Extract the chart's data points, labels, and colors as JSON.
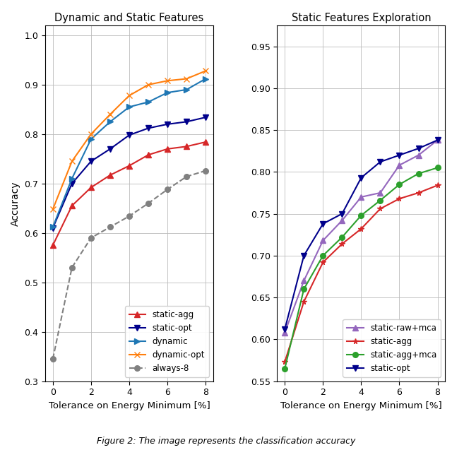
{
  "left_title": "Dynamic and Static Features",
  "right_title": "Static Features Exploration",
  "xlabel": "Tolerance on Energy Minimum [%]",
  "ylabel": "Accuracy",
  "left_xlim": [
    -0.4,
    8.4
  ],
  "left_ylim": [
    0.3,
    1.02
  ],
  "right_xlim": [
    -0.4,
    8.4
  ],
  "right_ylim": [
    0.55,
    0.975
  ],
  "x": [
    0,
    1,
    2,
    3,
    4,
    5,
    6,
    7,
    8
  ],
  "left_series": [
    {
      "key": "static-agg",
      "y": [
        0.575,
        0.655,
        0.692,
        0.717,
        0.736,
        0.758,
        0.77,
        0.775,
        0.784
      ],
      "color": "#d62728",
      "marker": "^",
      "linestyle": "-",
      "label": "static-agg"
    },
    {
      "key": "static-opt",
      "y": [
        0.61,
        0.7,
        0.745,
        0.77,
        0.798,
        0.812,
        0.82,
        0.825,
        0.834
      ],
      "color": "#00008B",
      "marker": "v",
      "linestyle": "-",
      "label": "static-opt"
    },
    {
      "key": "dynamic",
      "y": [
        0.612,
        0.71,
        0.79,
        0.825,
        0.855,
        0.865,
        0.884,
        0.89,
        0.912
      ],
      "color": "#1f77b4",
      "marker": ">",
      "linestyle": "-",
      "label": "dynamic"
    },
    {
      "key": "dynamic-opt",
      "y": [
        0.648,
        0.745,
        0.8,
        0.84,
        0.878,
        0.9,
        0.908,
        0.912,
        0.928
      ],
      "color": "#ff7f0e",
      "marker": "x",
      "linestyle": "-",
      "label": "dynamic-opt"
    },
    {
      "key": "always-8",
      "y": [
        0.345,
        0.53,
        0.59,
        0.612,
        0.634,
        0.66,
        0.688,
        0.714,
        0.726
      ],
      "color": "#808080",
      "marker": "o",
      "linestyle": "--",
      "label": "always-8"
    }
  ],
  "right_series": [
    {
      "key": "static-raw+mca",
      "y": [
        0.608,
        0.67,
        0.718,
        0.742,
        0.77,
        0.775,
        0.808,
        0.82,
        0.838
      ],
      "color": "#9467bd",
      "marker": "^",
      "linestyle": "-",
      "label": "static-raw+mca"
    },
    {
      "key": "static-agg",
      "y": [
        0.573,
        0.645,
        0.692,
        0.714,
        0.732,
        0.756,
        0.768,
        0.775,
        0.784
      ],
      "color": "#d62728",
      "marker": "*",
      "linestyle": "-",
      "label": "static-agg"
    },
    {
      "key": "static-agg+mca",
      "y": [
        0.565,
        0.66,
        0.7,
        0.722,
        0.748,
        0.766,
        0.785,
        0.798,
        0.805
      ],
      "color": "#2ca02c",
      "marker": "o",
      "linestyle": "-",
      "label": "static-agg+mca"
    },
    {
      "key": "static-opt",
      "y": [
        0.612,
        0.7,
        0.738,
        0.75,
        0.793,
        0.812,
        0.82,
        0.828,
        0.838
      ],
      "color": "#00008B",
      "marker": "v",
      "linestyle": "-",
      "label": "static-opt"
    }
  ],
  "caption": "Figure 2: The image represents the classification accuracy",
  "left_yticks": [
    0.3,
    0.4,
    0.5,
    0.6,
    0.7,
    0.8,
    0.9,
    1.0
  ],
  "right_yticks": [
    0.55,
    0.6,
    0.65,
    0.7,
    0.75,
    0.8,
    0.85,
    0.9,
    0.95
  ],
  "xticks": [
    0,
    2,
    4,
    6,
    8
  ]
}
